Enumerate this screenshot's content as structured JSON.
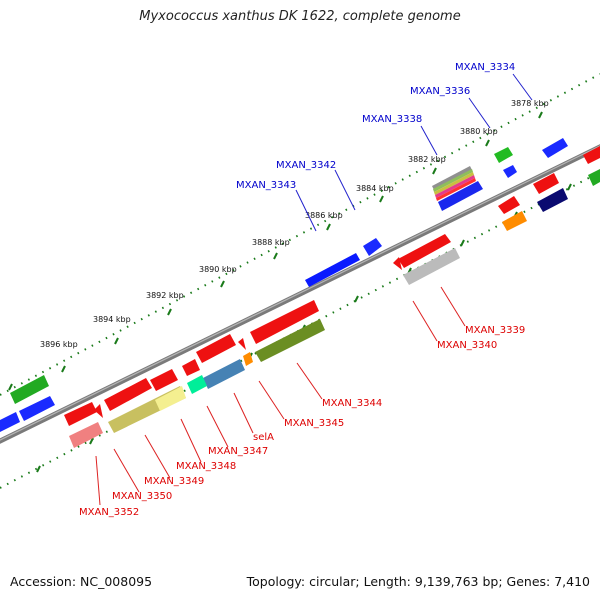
{
  "title": "Myxococcus xanthus DK 1622, complete genome",
  "footer": {
    "accession": "Accession: NC_008095",
    "summary": "Topology: circular; Length: 9,139,763 bp; Genes: 7,410"
  },
  "ticks": [
    "3878 kbp",
    "3880 kbp",
    "3882 kbp",
    "3884 kbp",
    "3886 kbp",
    "3888 kbp",
    "3890 kbp",
    "3892 kbp",
    "3894 kbp",
    "3896 kbp"
  ],
  "upper_labels": [
    "MXAN_3334",
    "MXAN_3336",
    "MXAN_3338",
    "MXAN_3342",
    "MXAN_3343"
  ],
  "lower_labels": [
    "MXAN_3339",
    "MXAN_3340",
    "MXAN_3344",
    "MXAN_3345",
    "selA",
    "MXAN_3347",
    "MXAN_3348",
    "MXAN_3349",
    "MXAN_3350",
    "MXAN_3352"
  ],
  "colors": {
    "upper_label": "#0000cc",
    "lower_label": "#dd0000",
    "backbone": "#777777",
    "scale": "#1a7a1a"
  }
}
